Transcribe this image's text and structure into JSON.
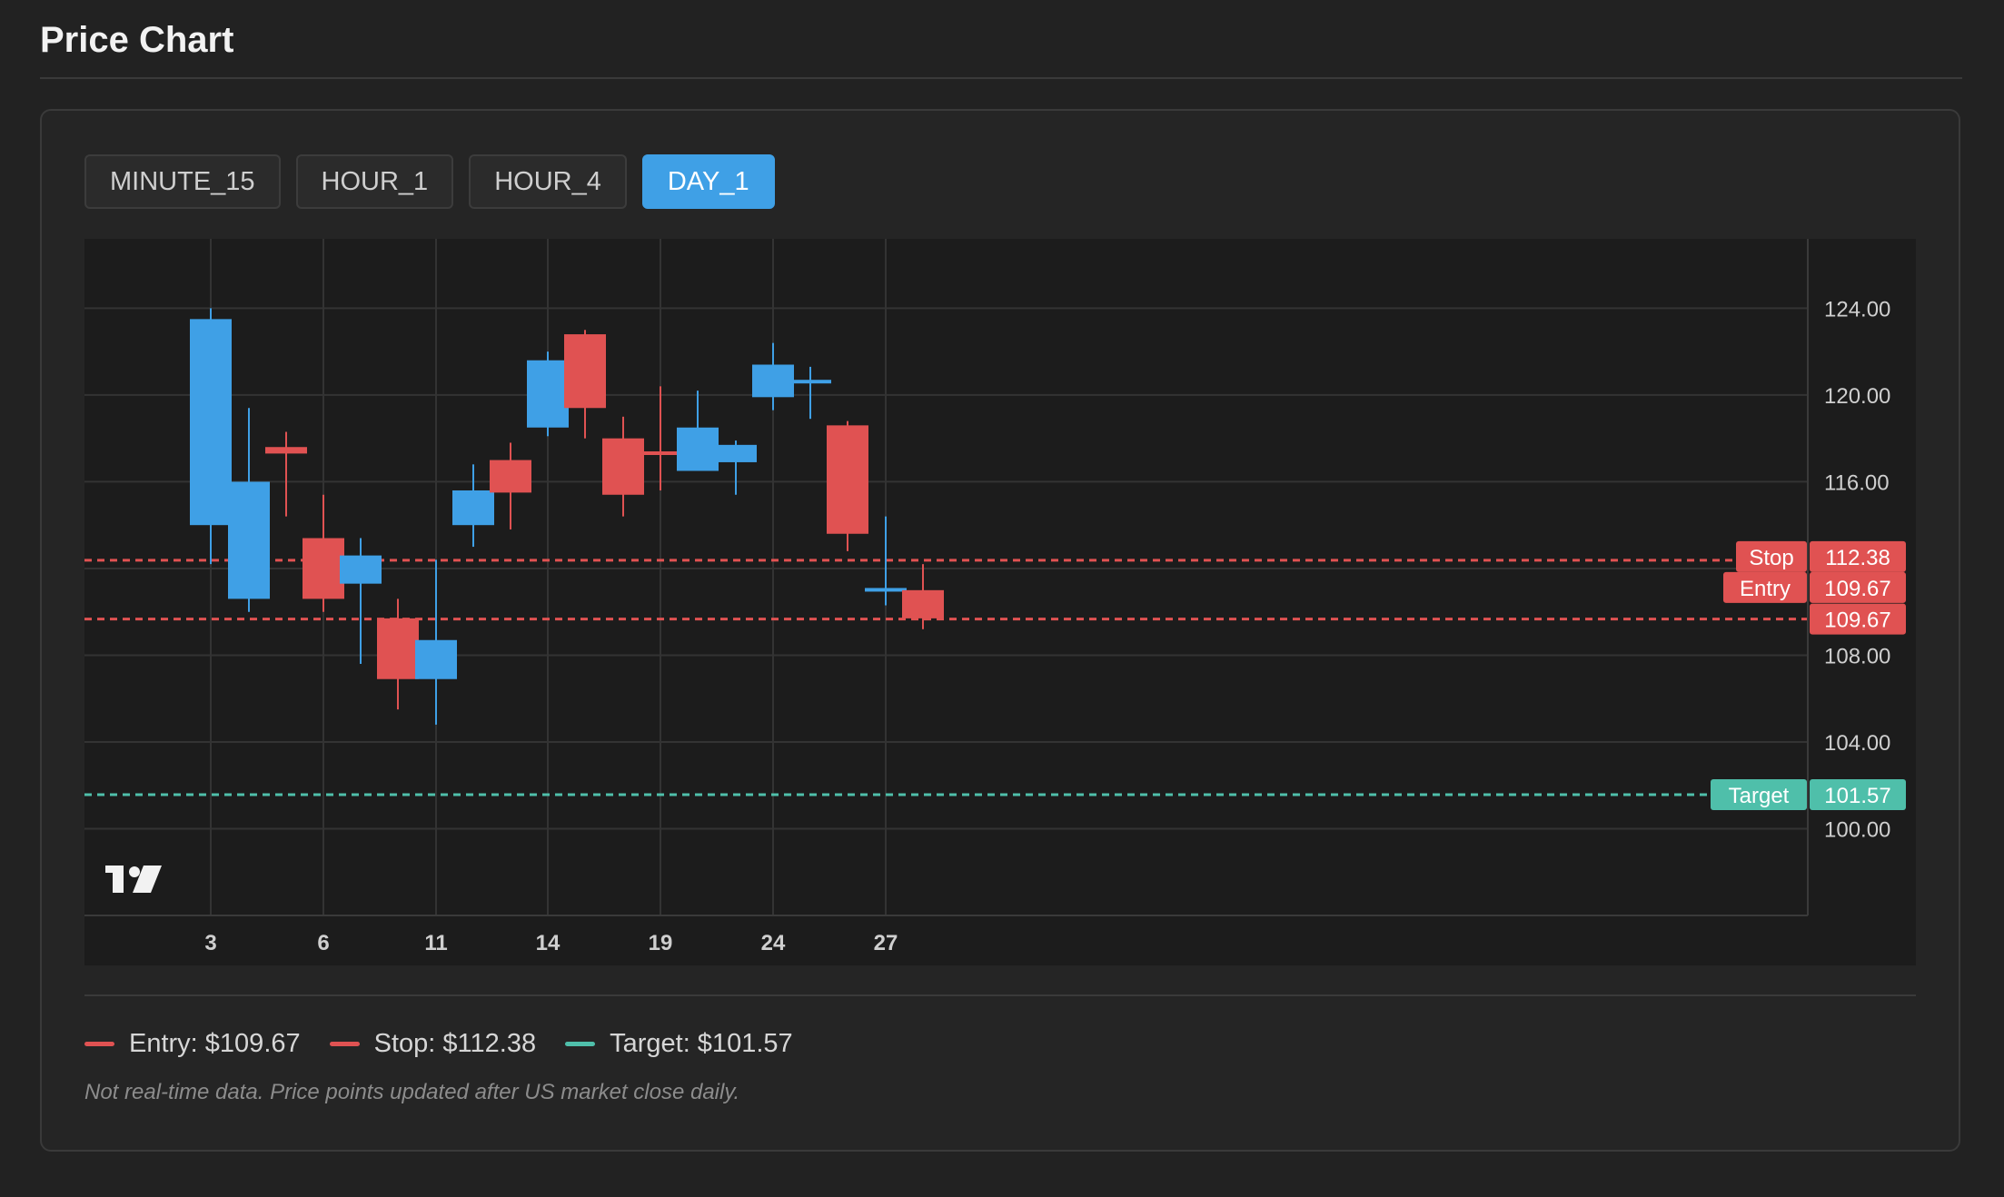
{
  "page": {
    "title": "Price Chart"
  },
  "timeframes": [
    {
      "label": "MINUTE_15",
      "active": false
    },
    {
      "label": "HOUR_1",
      "active": false
    },
    {
      "label": "HOUR_4",
      "active": false
    },
    {
      "label": "DAY_1",
      "active": true
    }
  ],
  "colors": {
    "up": "#3fa0e6",
    "down": "#e05252",
    "target": "#4fbfaa",
    "grid": "#333333",
    "plot_bg": "#1c1c1c"
  },
  "chart_data": {
    "type": "candlestick",
    "ylim": [
      96.0,
      127.2
    ],
    "y_ticks": [
      "124.00",
      "120.00",
      "116.00",
      "108.00",
      "104.00",
      "100.00"
    ],
    "y_tick_values": [
      124,
      120,
      116,
      108,
      104,
      100
    ],
    "x_tick_labels": [
      "3",
      "6",
      "11",
      "14",
      "19",
      "24",
      "27"
    ],
    "x_tick_slots": [
      4,
      7,
      10,
      13,
      16,
      19,
      22
    ],
    "candles": [
      {
        "open": 114.0,
        "high": 124.0,
        "low": 112.2,
        "close": 123.5
      },
      {
        "open": 110.6,
        "high": 119.4,
        "low": 110.0,
        "close": 116.0
      },
      {
        "open": 117.6,
        "high": 118.3,
        "low": 114.4,
        "close": 117.3
      },
      {
        "open": 113.4,
        "high": 115.4,
        "low": 110.0,
        "close": 110.6
      },
      {
        "open": 111.3,
        "high": 113.4,
        "low": 107.6,
        "close": 112.6
      },
      {
        "open": 109.7,
        "high": 110.6,
        "low": 105.5,
        "close": 106.9
      },
      {
        "open": 106.9,
        "high": 112.4,
        "low": 104.8,
        "close": 108.7
      },
      {
        "open": 114.0,
        "high": 116.8,
        "low": 113.0,
        "close": 115.6
      },
      {
        "open": 117.0,
        "high": 117.8,
        "low": 113.8,
        "close": 115.5
      },
      {
        "open": 118.5,
        "high": 122.0,
        "low": 118.1,
        "close": 121.6
      },
      {
        "open": 122.8,
        "high": 123.0,
        "low": 118.0,
        "close": 119.4
      },
      {
        "open": 118.0,
        "high": 119.0,
        "low": 114.4,
        "close": 115.4
      },
      {
        "open": 117.4,
        "high": 120.4,
        "low": 115.6,
        "close": 117.3
      },
      {
        "open": 116.5,
        "high": 120.2,
        "low": 116.5,
        "close": 118.5
      },
      {
        "open": 116.9,
        "high": 117.9,
        "low": 115.4,
        "close": 117.7
      },
      {
        "open": 119.9,
        "high": 122.4,
        "low": 119.3,
        "close": 121.4
      },
      {
        "open": 120.7,
        "high": 121.3,
        "low": 118.9,
        "close": 120.7
      },
      {
        "open": 118.6,
        "high": 118.8,
        "low": 112.8,
        "close": 113.6
      },
      {
        "open": 111.0,
        "high": 114.4,
        "low": 110.3,
        "close": 111.1
      },
      {
        "open": 111.0,
        "high": 112.2,
        "low": 109.2,
        "close": 109.7
      }
    ],
    "price_lines": [
      {
        "label": "Stop",
        "value": "112.38",
        "price": 112.38,
        "color": "#e05252"
      },
      {
        "label": "Entry",
        "value": "109.67",
        "price": 109.67,
        "color": "#e05252"
      },
      {
        "label": "Target",
        "value": "101.57",
        "price": 101.57,
        "color": "#4fbfaa"
      }
    ],
    "last_price": {
      "value": "109.67",
      "price": 109.67,
      "color": "#e05252"
    }
  },
  "legend": [
    {
      "label": "Entry: $109.67",
      "color": "#e05252"
    },
    {
      "label": "Stop: $112.38",
      "color": "#e05252"
    },
    {
      "label": "Target: $101.57",
      "color": "#4fbfaa"
    }
  ],
  "disclaimer": "Not real-time data. Price points updated after US market close daily."
}
